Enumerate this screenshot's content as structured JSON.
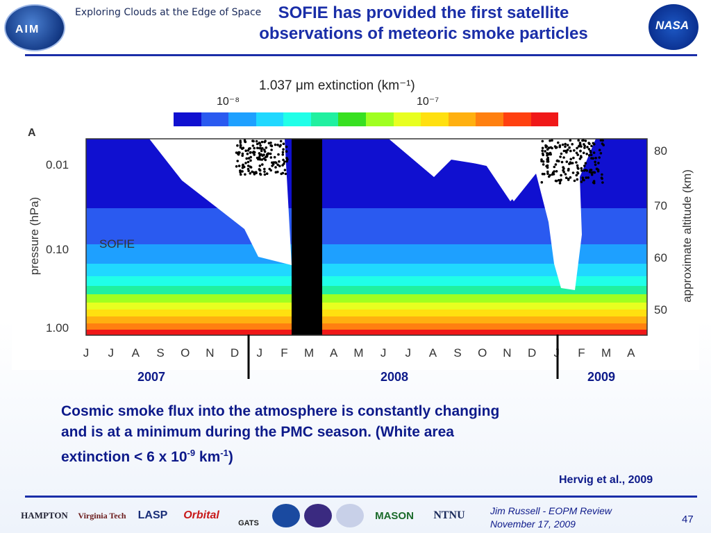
{
  "header": {
    "logo_text": "AIM",
    "tagline": "Exploring Clouds at the Edge of Space",
    "title_line1": "SOFIE has provided the first satellite",
    "title_line2": "observations of meteoric smoke particles",
    "agency_logo": "NASA"
  },
  "colorbar": {
    "title": "1.037 μm extinction (km⁻¹)",
    "low_label": "10⁻⁸",
    "high_label": "10⁻⁷",
    "colors": [
      "#1010d0",
      "#2a5af0",
      "#1ea0ff",
      "#20d8ff",
      "#20ffe8",
      "#20f0a0",
      "#38e020",
      "#a0ff20",
      "#e8ff20",
      "#ffe010",
      "#ffb010",
      "#ff8010",
      "#ff4010",
      "#f01818"
    ]
  },
  "figure": {
    "panel_label": "A",
    "instrument_label": "SOFIE",
    "ylabel_left": "pressure (hPa)",
    "ylabel_right": "approximate altitude (km)",
    "yticks_left": [
      "0.01",
      "0.10",
      "1.00"
    ],
    "yticks_right": [
      "80",
      "70",
      "60",
      "50"
    ],
    "month_ticks": [
      "J",
      "J",
      "A",
      "S",
      "O",
      "N",
      "D",
      "J",
      "F",
      "M",
      "A",
      "M",
      "J",
      "J",
      "A",
      "S",
      "O",
      "N",
      "D",
      "J",
      "F",
      "M",
      "A"
    ],
    "years": [
      "2007",
      "2008",
      "2009"
    ]
  },
  "caption": {
    "line1": "Cosmic smoke flux into the atmosphere is constantly changing",
    "line2": "and is at a minimum during the PMC season. (White area",
    "line3_prefix": "extinction   < 6 x 10",
    "line3_exp1": "-9",
    "line3_mid": " km",
    "line3_exp2": "-1",
    "line3_suffix": ")"
  },
  "citation": "Hervig et al., 2009",
  "footer": {
    "logos": [
      "HAMPTON",
      "Virginia Tech",
      "LASP",
      "Orbital",
      "GATS",
      "NTNU",
      "MASON"
    ],
    "credit_line1": "Jim Russell  -  EOPM Review",
    "credit_line2": "November 17, 2009",
    "page_number": "47"
  },
  "theme": {
    "title_color": "#1a2ea8",
    "text_color": "#0d1a8a"
  }
}
